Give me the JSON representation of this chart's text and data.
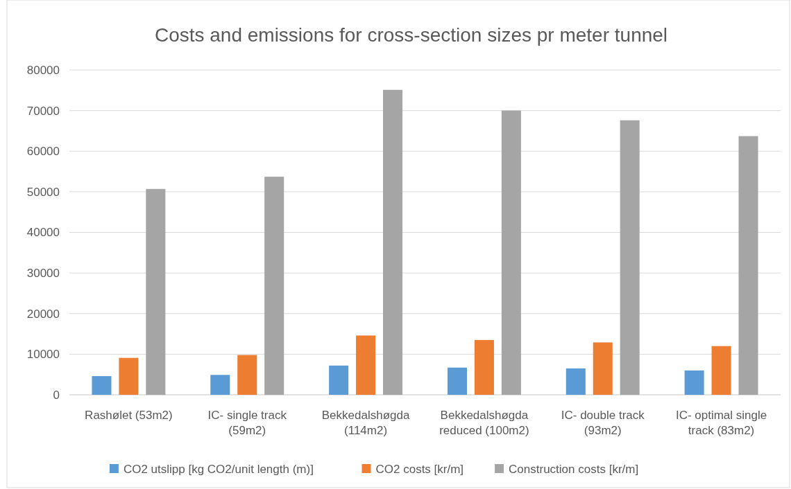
{
  "chart_data": {
    "type": "bar",
    "title": "Costs and emissions for cross-section sizes pr meter tunnel",
    "categories": [
      "Rashølet (53m2)",
      "IC- single track (59m2)",
      "Bekkedalshøgda (114m2)",
      "Bekkedalshøgda reduced (100m2)",
      "IC- double track (93m2)",
      "IC- optimal single track (83m2)"
    ],
    "series": [
      {
        "name": "CO2 utslipp [kg CO2/unit length (m)]",
        "color": "#5b9bd5",
        "values": [
          4600,
          4900,
          7200,
          6700,
          6500,
          6000
        ]
      },
      {
        "name": "CO2 costs [kr/m]",
        "color": "#ed7d31",
        "values": [
          9100,
          9800,
          14600,
          13500,
          12900,
          12000
        ]
      },
      {
        "name": "Construction costs [kr/m]",
        "color": "#a5a5a5",
        "values": [
          50700,
          53700,
          75100,
          70000,
          67600,
          63700
        ]
      }
    ],
    "ylim": [
      0,
      80000
    ],
    "yticks": [
      0,
      10000,
      20000,
      30000,
      40000,
      50000,
      60000,
      70000,
      80000
    ],
    "grid": "y",
    "legend": "bottom"
  }
}
